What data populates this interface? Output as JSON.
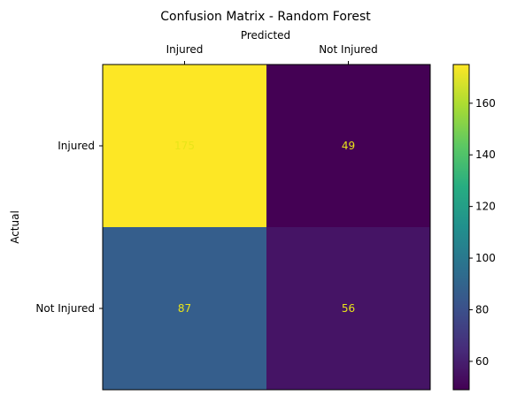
{
  "chart_data": {
    "type": "heatmap",
    "title": "Confusion Matrix - Random Forest",
    "xlabel": "Predicted",
    "ylabel": "Actual",
    "x_categories": [
      "Injured",
      "Not Injured"
    ],
    "y_categories": [
      "Injured",
      "Not Injured"
    ],
    "x_axis_position": "top",
    "values": [
      [
        175,
        49
      ],
      [
        87,
        56
      ]
    ],
    "colormap": "viridis",
    "value_text_color": "#e8e419",
    "colorbar": {
      "range": [
        49,
        175
      ],
      "ticks": [
        60,
        80,
        100,
        120,
        140,
        160
      ]
    },
    "grid": false
  }
}
